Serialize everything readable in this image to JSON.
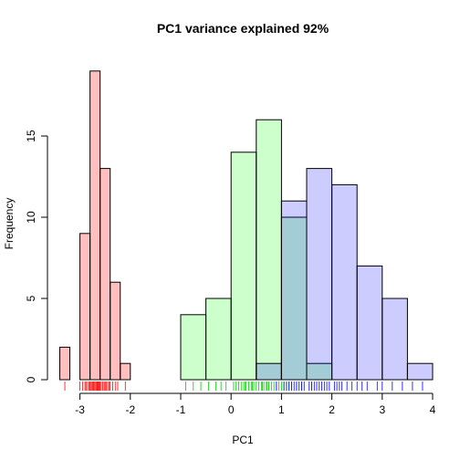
{
  "chart_data": {
    "type": "histogram",
    "title": "PC1 variance explained 92%",
    "xlabel": "PC1",
    "ylabel": "Frequency",
    "xlim": [
      -3.5,
      4
    ],
    "ylim": [
      0,
      20
    ],
    "xticks": [
      "-3",
      "-2",
      "-1",
      "0",
      "1",
      "2",
      "3",
      "4"
    ],
    "xtick_values": [
      -3,
      -2,
      -1,
      0,
      1,
      2,
      3,
      4
    ],
    "yticks": [
      "0",
      "5",
      "10",
      "15"
    ],
    "ytick_values": [
      0,
      5,
      10,
      15
    ],
    "series": [
      {
        "color": "#ff000040",
        "rug_color": "#ff0000",
        "bars": [
          {
            "x0": -3.4,
            "x1": -3.2,
            "count": 2
          },
          {
            "x0": -3.0,
            "x1": -2.8,
            "count": 9
          },
          {
            "x0": -2.8,
            "x1": -2.6,
            "count": 19
          },
          {
            "x0": -2.6,
            "x1": -2.4,
            "count": 13
          },
          {
            "x0": -2.4,
            "x1": -2.2,
            "count": 6
          },
          {
            "x0": -2.2,
            "x1": -2.0,
            "count": 1
          }
        ],
        "rug": [
          -3.3,
          -3.0,
          -2.95,
          -2.9,
          -2.88,
          -2.85,
          -2.82,
          -2.8,
          -2.78,
          -2.76,
          -2.75,
          -2.73,
          -2.72,
          -2.7,
          -2.68,
          -2.66,
          -2.65,
          -2.63,
          -2.62,
          -2.6,
          -2.58,
          -2.55,
          -2.52,
          -2.5,
          -2.48,
          -2.45,
          -2.42,
          -2.4,
          -2.35,
          -2.3,
          -2.25,
          -2.1
        ]
      },
      {
        "color": "#00ff0033",
        "rug_color": "#00cc00",
        "bars": [
          {
            "x0": -1.0,
            "x1": -0.5,
            "count": 4
          },
          {
            "x0": -0.5,
            "x1": 0.0,
            "count": 5
          },
          {
            "x0": 0.0,
            "x1": 0.5,
            "count": 14
          },
          {
            "x0": 0.5,
            "x1": 1.0,
            "count": 16
          },
          {
            "x0": 1.0,
            "x1": 1.5,
            "count": 10
          },
          {
            "x0": 1.5,
            "x1": 2.0,
            "count": 1
          }
        ],
        "rug": [
          -0.9,
          -0.75,
          -0.6,
          -0.45,
          -0.3,
          -0.2,
          -0.1,
          0.05,
          0.1,
          0.15,
          0.2,
          0.25,
          0.28,
          0.3,
          0.35,
          0.4,
          0.42,
          0.45,
          0.5,
          0.55,
          0.6,
          0.62,
          0.65,
          0.7,
          0.72,
          0.75,
          0.8,
          0.85,
          0.9,
          0.95,
          1.0,
          1.05,
          1.1,
          1.15,
          1.2,
          1.3,
          1.4,
          1.6
        ]
      },
      {
        "color": "#0000ff33",
        "rug_color": "#0000ff",
        "bars": [
          {
            "x0": 0.5,
            "x1": 1.0,
            "count": 1
          },
          {
            "x0": 1.0,
            "x1": 1.5,
            "count": 11
          },
          {
            "x0": 1.5,
            "x1": 2.0,
            "count": 13
          },
          {
            "x0": 2.0,
            "x1": 2.5,
            "count": 12
          },
          {
            "x0": 2.5,
            "x1": 3.0,
            "count": 7
          },
          {
            "x0": 3.0,
            "x1": 3.5,
            "count": 5
          },
          {
            "x0": 3.5,
            "x1": 4.0,
            "count": 1
          }
        ],
        "rug": [
          0.9,
          1.05,
          1.1,
          1.15,
          1.2,
          1.25,
          1.3,
          1.35,
          1.4,
          1.45,
          1.55,
          1.6,
          1.65,
          1.7,
          1.75,
          1.8,
          1.85,
          1.9,
          1.95,
          2.05,
          2.1,
          2.15,
          2.2,
          2.3,
          2.4,
          2.5,
          2.6,
          2.7,
          2.9,
          3.0,
          3.2,
          3.4,
          3.6,
          3.8
        ]
      }
    ]
  }
}
